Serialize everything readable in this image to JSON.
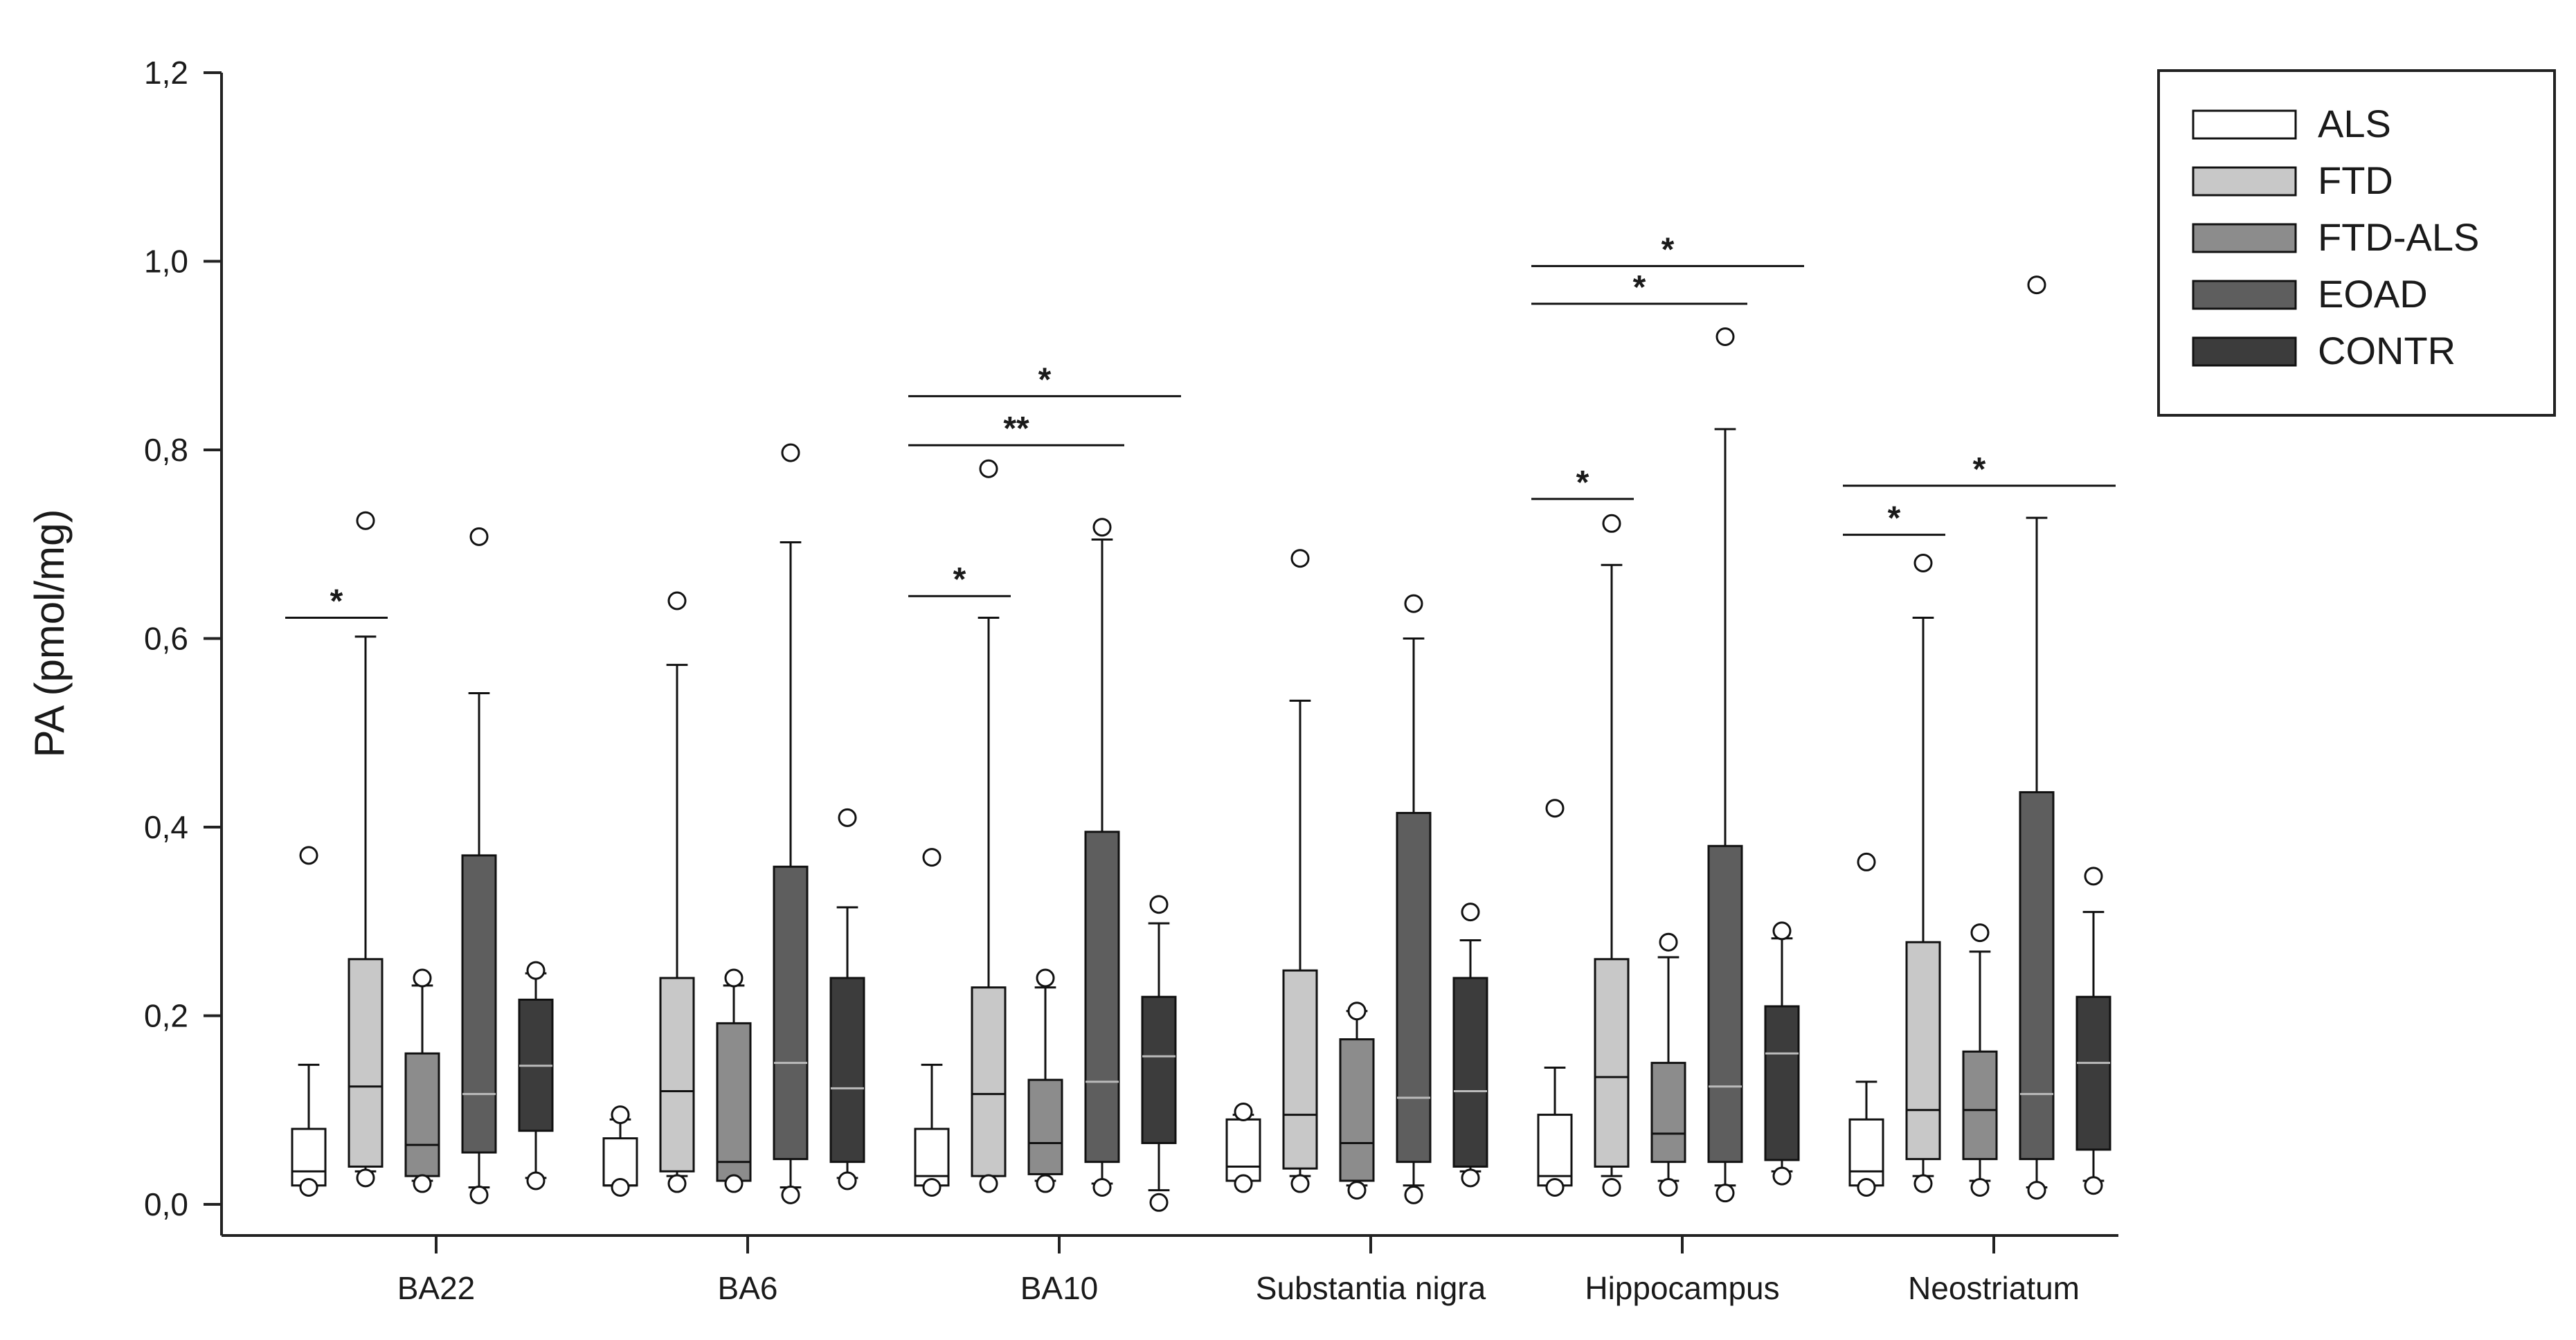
{
  "chart_data": {
    "type": "box",
    "ylabel": "PA (pmol/mg)",
    "xlabel": "",
    "ylim": [
      0,
      1.2
    ],
    "yticks": [
      "0,0",
      "0,2",
      "0,4",
      "0,6",
      "0,8",
      "1,0",
      "1,2"
    ],
    "ytick_values": [
      0,
      0.2,
      0.4,
      0.6,
      0.8,
      1.0,
      1.2
    ],
    "grid": false,
    "legend_position": "top-right",
    "categories": [
      "BA22",
      "BA6",
      "BA10",
      "Substantia nigra",
      "Hippocampus",
      "Neostriatum"
    ],
    "series": [
      {
        "name": "ALS",
        "color": "#ffffff",
        "boxes": [
          {
            "min": 0.02,
            "q1": 0.02,
            "median": 0.035,
            "q3": 0.08,
            "max": 0.148,
            "outliers": [
              0.37,
              0.018
            ]
          },
          {
            "min": 0.02,
            "q1": 0.02,
            "median": 0.02,
            "q3": 0.07,
            "max": 0.09,
            "outliers": [
              0.095,
              0.018
            ]
          },
          {
            "min": 0.02,
            "q1": 0.02,
            "median": 0.03,
            "q3": 0.08,
            "max": 0.148,
            "outliers": [
              0.368,
              0.018
            ]
          },
          {
            "min": 0.025,
            "q1": 0.025,
            "median": 0.04,
            "q3": 0.09,
            "max": 0.095,
            "outliers": [
              0.098,
              0.022
            ]
          },
          {
            "min": 0.02,
            "q1": 0.02,
            "median": 0.03,
            "q3": 0.095,
            "max": 0.145,
            "outliers": [
              0.42,
              0.018
            ]
          },
          {
            "min": 0.02,
            "q1": 0.02,
            "median": 0.035,
            "q3": 0.09,
            "max": 0.13,
            "outliers": [
              0.363,
              0.018
            ]
          }
        ]
      },
      {
        "name": "FTD",
        "color": "#c8c8c8",
        "boxes": [
          {
            "min": 0.035,
            "q1": 0.04,
            "median": 0.125,
            "q3": 0.26,
            "max": 0.602,
            "outliers": [
              0.725,
              0.028
            ]
          },
          {
            "min": 0.03,
            "q1": 0.035,
            "median": 0.12,
            "q3": 0.24,
            "max": 0.572,
            "outliers": [
              0.64,
              0.022
            ]
          },
          {
            "min": 0.03,
            "q1": 0.03,
            "median": 0.117,
            "q3": 0.23,
            "max": 0.622,
            "outliers": [
              0.78,
              0.022
            ]
          },
          {
            "min": 0.03,
            "q1": 0.038,
            "median": 0.095,
            "q3": 0.248,
            "max": 0.534,
            "outliers": [
              0.685,
              0.022
            ]
          },
          {
            "min": 0.03,
            "q1": 0.04,
            "median": 0.135,
            "q3": 0.26,
            "max": 0.678,
            "outliers": [
              0.722,
              0.018
            ]
          },
          {
            "min": 0.03,
            "q1": 0.048,
            "median": 0.1,
            "q3": 0.278,
            "max": 0.622,
            "outliers": [
              0.68,
              0.022
            ]
          }
        ]
      },
      {
        "name": "FTD-ALS",
        "color": "#8c8c8c",
        "boxes": [
          {
            "min": 0.025,
            "q1": 0.03,
            "median": 0.063,
            "q3": 0.16,
            "max": 0.232,
            "outliers": [
              0.24,
              0.022
            ]
          },
          {
            "min": 0.025,
            "q1": 0.025,
            "median": 0.045,
            "q3": 0.192,
            "max": 0.232,
            "outliers": [
              0.24,
              0.022
            ]
          },
          {
            "min": 0.025,
            "q1": 0.032,
            "median": 0.065,
            "q3": 0.132,
            "max": 0.23,
            "outliers": [
              0.24,
              0.022
            ]
          },
          {
            "min": 0.02,
            "q1": 0.025,
            "median": 0.065,
            "q3": 0.175,
            "max": 0.205,
            "outliers": [
              0.205,
              0.015
            ]
          },
          {
            "min": 0.025,
            "q1": 0.045,
            "median": 0.075,
            "q3": 0.15,
            "max": 0.262,
            "outliers": [
              0.278,
              0.018
            ]
          },
          {
            "min": 0.025,
            "q1": 0.048,
            "median": 0.1,
            "q3": 0.162,
            "max": 0.268,
            "outliers": [
              0.288,
              0.018
            ]
          }
        ]
      },
      {
        "name": "EOAD",
        "color": "#5e5e5e",
        "boxes": [
          {
            "min": 0.018,
            "q1": 0.055,
            "median": 0.117,
            "q3": 0.37,
            "max": 0.542,
            "outliers": [
              0.708,
              0.01
            ]
          },
          {
            "min": 0.018,
            "q1": 0.048,
            "median": 0.15,
            "q3": 0.358,
            "max": 0.702,
            "outliers": [
              0.797,
              0.01
            ]
          },
          {
            "min": 0.022,
            "q1": 0.045,
            "median": 0.13,
            "q3": 0.395,
            "max": 0.705,
            "outliers": [
              0.718,
              0.018
            ]
          },
          {
            "min": 0.02,
            "q1": 0.045,
            "median": 0.113,
            "q3": 0.415,
            "max": 0.6,
            "outliers": [
              0.637,
              0.01
            ]
          },
          {
            "min": 0.02,
            "q1": 0.045,
            "median": 0.125,
            "q3": 0.38,
            "max": 0.822,
            "outliers": [
              0.92,
              0.012
            ]
          },
          {
            "min": 0.018,
            "q1": 0.048,
            "median": 0.117,
            "q3": 0.437,
            "max": 0.728,
            "outliers": [
              0.975,
              0.015
            ]
          }
        ]
      },
      {
        "name": "CONTR",
        "color": "#3c3c3c",
        "boxes": [
          {
            "min": 0.028,
            "q1": 0.078,
            "median": 0.147,
            "q3": 0.217,
            "max": 0.245,
            "outliers": [
              0.248,
              0.025
            ]
          },
          {
            "min": 0.028,
            "q1": 0.045,
            "median": 0.123,
            "q3": 0.24,
            "max": 0.315,
            "outliers": [
              0.41,
              0.025
            ]
          },
          {
            "min": 0.015,
            "q1": 0.065,
            "median": 0.157,
            "q3": 0.22,
            "max": 0.298,
            "outliers": [
              0.318,
              0.002
            ]
          },
          {
            "min": 0.035,
            "q1": 0.04,
            "median": 0.12,
            "q3": 0.24,
            "max": 0.28,
            "outliers": [
              0.31,
              0.028
            ]
          },
          {
            "min": 0.035,
            "q1": 0.047,
            "median": 0.16,
            "q3": 0.21,
            "max": 0.282,
            "outliers": [
              0.29,
              0.03
            ]
          },
          {
            "min": 0.025,
            "q1": 0.058,
            "median": 0.15,
            "q3": 0.22,
            "max": 0.31,
            "outliers": [
              0.348,
              0.02
            ]
          }
        ]
      }
    ],
    "significance": [
      {
        "category": "BA22",
        "from": "ALS",
        "to": "FTD",
        "y": 0.622,
        "label": "*"
      },
      {
        "category": "BA10",
        "from": "ALS",
        "to": "FTD",
        "y": 0.645,
        "label": "*"
      },
      {
        "category": "BA10",
        "from": "ALS",
        "to": "EOAD",
        "y": 0.805,
        "label": "**"
      },
      {
        "category": "BA10",
        "from": "ALS",
        "to": "CONTR",
        "y": 0.857,
        "label": "*"
      },
      {
        "category": "Hippocampus",
        "from": "ALS",
        "to": "FTD",
        "y": 0.748,
        "label": "*"
      },
      {
        "category": "Hippocampus",
        "from": "ALS",
        "to": "EOAD",
        "y": 0.955,
        "label": "*"
      },
      {
        "category": "Hippocampus",
        "from": "ALS",
        "to": "CONTR",
        "y": 0.995,
        "label": "*"
      },
      {
        "category": "Neostriatum",
        "from": "ALS",
        "to": "FTD",
        "y": 0.71,
        "label": "*"
      },
      {
        "category": "Neostriatum",
        "from": "ALS",
        "to": "CONTR",
        "y": 0.762,
        "label": "*"
      }
    ]
  }
}
